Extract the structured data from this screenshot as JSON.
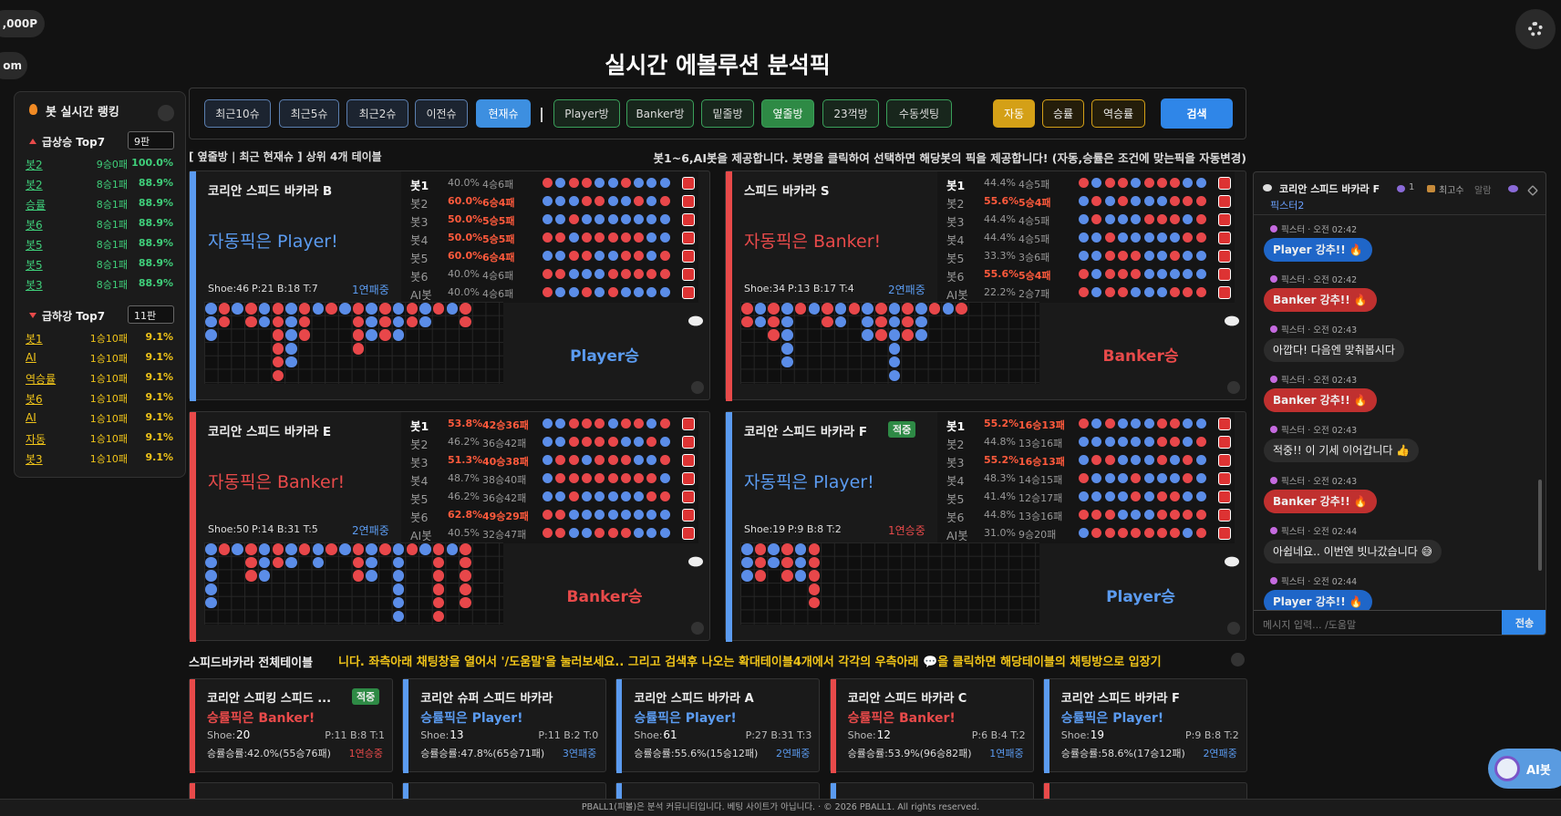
{
  "top_pills": [
    ",000P",
    "om"
  ],
  "title": "실시간 에볼루션 분석픽",
  "filters": [
    "최근10슈",
    "최근5슈",
    "최근2슈",
    "이전슈",
    "현재슈"
  ],
  "rooms": [
    "Player방",
    "Banker방",
    "밑줄방",
    "옆줄방",
    "23꺽방",
    "수동셋팅"
  ],
  "modes": [
    "자동",
    "승률",
    "역승률"
  ],
  "search": "검색",
  "info_left": "[ 옆줄방 | 최근 현재슈 ] 상위 4개 테이블",
  "info_right": "봇1~6,AI봇을 제공합니다. 봇명을 클릭하여 선택하면 해당봇의 픽을 제공합니다! (자동,승률은 조건에 맞는픽을 자동변경)",
  "ranking": {
    "title": "봇 실시간 랭킹",
    "rising": {
      "title": "급상승 Top7",
      "select": "9판",
      "rows": [
        [
          "봇2",
          "9승0패",
          "100.0%"
        ],
        [
          "봇2",
          "8승1패",
          "88.9%"
        ],
        [
          "승률",
          "8승1패",
          "88.9%"
        ],
        [
          "봇6",
          "8승1패",
          "88.9%"
        ],
        [
          "봇5",
          "8승1패",
          "88.9%"
        ],
        [
          "봇5",
          "8승1패",
          "88.9%"
        ],
        [
          "봇3",
          "8승1패",
          "88.9%"
        ]
      ]
    },
    "falling": {
      "title": "급하강 Top7",
      "select": "11판",
      "rows": [
        [
          "봇1",
          "1승10패",
          "9.1%"
        ],
        [
          "AI",
          "1승10패",
          "9.1%"
        ],
        [
          "역승률",
          "1승10패",
          "9.1%"
        ],
        [
          "봇6",
          "1승10패",
          "9.1%"
        ],
        [
          "AI",
          "1승10패",
          "9.1%"
        ],
        [
          "자동",
          "1승10패",
          "9.1%"
        ],
        [
          "봇3",
          "1승10패",
          "9.1%"
        ]
      ]
    }
  },
  "tables": [
    {
      "name": "코리안 스피드 바카라 B",
      "color": "#5b9bf0",
      "pick": "자동픽은 Player!",
      "shoe": "Shoe:46",
      "stats": "P:21 B:18 T:7",
      "streak": "1연패중",
      "streak_color": "#5b9bf0",
      "result": "Player승",
      "bots": [
        [
          "봇1",
          "40.0%",
          "4승6패",
          false
        ],
        [
          "봇2",
          "60.0%",
          "6승4패",
          true
        ],
        [
          "봇3",
          "50.0%",
          "5승5패",
          true
        ],
        [
          "봇4",
          "50.0%",
          "5승5패",
          true
        ],
        [
          "봇5",
          "60.0%",
          "6승4패",
          true
        ],
        [
          "봇6",
          "40.0%",
          "4승6패",
          false
        ],
        [
          "AI봇",
          "40.0%",
          "4승6패",
          false
        ]
      ]
    },
    {
      "name": "스피드 바카라 S",
      "color": "#e84a4a",
      "pick": "자동픽은 Banker!",
      "shoe": "Shoe:34",
      "stats": "P:13 B:17 T:4",
      "streak": "2연패중",
      "streak_color": "#5b9bf0",
      "result": "Banker승",
      "bots": [
        [
          "봇1",
          "44.4%",
          "4승5패",
          false
        ],
        [
          "봇2",
          "55.6%",
          "5승4패",
          true
        ],
        [
          "봇3",
          "44.4%",
          "4승5패",
          false
        ],
        [
          "봇4",
          "44.4%",
          "4승5패",
          false
        ],
        [
          "봇5",
          "33.3%",
          "3승6패",
          false
        ],
        [
          "봇6",
          "55.6%",
          "5승4패",
          true
        ],
        [
          "AI봇",
          "22.2%",
          "2승7패",
          false
        ]
      ]
    },
    {
      "name": "코리안 스피드 바카라 E",
      "color": "#e84a4a",
      "pick": "자동픽은 Banker!",
      "shoe": "Shoe:50",
      "stats": "P:14 B:31 T:5",
      "streak": "2연패중",
      "streak_color": "#5b9bf0",
      "result": "Banker승",
      "bots": [
        [
          "봇1",
          "53.8%",
          "42승36패",
          true
        ],
        [
          "봇2",
          "46.2%",
          "36승42패",
          false
        ],
        [
          "봇3",
          "51.3%",
          "40승38패",
          true
        ],
        [
          "봇4",
          "48.7%",
          "38승40패",
          false
        ],
        [
          "봇5",
          "46.2%",
          "36승42패",
          false
        ],
        [
          "봇6",
          "62.8%",
          "49승29패",
          true
        ],
        [
          "AI봇",
          "40.5%",
          "32승47패",
          false
        ]
      ]
    },
    {
      "name": "코리안 스피드 바카라 F",
      "badge": "적중",
      "color": "#5b9bf0",
      "pick": "자동픽은 Player!",
      "shoe": "Shoe:19",
      "stats": "P:9 B:8 T:2",
      "streak": "1연승중",
      "streak_color": "#e84a4a",
      "result": "Player승",
      "bots": [
        [
          "봇1",
          "55.2%",
          "16승13패",
          true
        ],
        [
          "봇2",
          "44.8%",
          "13승16패",
          false
        ],
        [
          "봇3",
          "55.2%",
          "16승13패",
          true
        ],
        [
          "봇4",
          "48.3%",
          "14승15패",
          false
        ],
        [
          "봇5",
          "41.4%",
          "12승17패",
          false
        ],
        [
          "봇6",
          "44.8%",
          "13승16패",
          false
        ],
        [
          "AI봇",
          "31.0%",
          "9승20패",
          false
        ]
      ]
    }
  ],
  "section_title": "스피드바카라 전체테이블",
  "marquee": "니다. 좌측아래 채팅창을 열어서 '/도움말'을 눌러보세요.. 그리고 검색후 나오는 확대테이블4개에서 각각의 우측아래 💬을 클릭하면 해당테이블의 채팅방으로 입장기",
  "cards": [
    {
      "name": "코리안 스피킹 스피드 ...",
      "badge": "적중",
      "color": "#e84a4a",
      "pick": "승률픽은 Banker!",
      "shoe_label": "Shoe:",
      "shoe": "20",
      "stats": "P:11 B:8 T:1",
      "rate": "승률승률:42.0%(55승76패)",
      "streak": "1연승중",
      "streak_color": "#e84a4a"
    },
    {
      "name": "코리안 슈퍼 스피드 바카라",
      "color": "#5b9bf0",
      "pick": "승률픽은 Player!",
      "shoe_label": "Shoe:",
      "shoe": "13",
      "stats": "P:11 B:2 T:0",
      "rate": "승률승률:47.8%(65승71패)",
      "streak": "3연패중",
      "streak_color": "#5b9bf0"
    },
    {
      "name": "코리안 스피드 바카라 A",
      "color": "#5b9bf0",
      "pick": "승률픽은 Player!",
      "shoe_label": "Shoe:",
      "shoe": "61",
      "stats": "P:27 B:31 T:3",
      "rate": "승률승률:55.6%(15승12패)",
      "streak": "2연패중",
      "streak_color": "#5b9bf0"
    },
    {
      "name": "코리안 스피드 바카라 C",
      "color": "#e84a4a",
      "pick": "승률픽은 Banker!",
      "shoe_label": "Shoe:",
      "shoe": "12",
      "stats": "P:6 B:4 T:2",
      "rate": "승률승률:53.9%(96승82패)",
      "streak": "1연패중",
      "streak_color": "#5b9bf0"
    },
    {
      "name": "코리안 스피드 바카라 F",
      "color": "#5b9bf0",
      "pick": "승률픽은 Player!",
      "shoe_label": "Shoe:",
      "shoe": "19",
      "stats": "P:9 B:8 T:2",
      "rate": "승률승률:58.6%(17승12패)",
      "streak": "2연패중",
      "streak_color": "#5b9bf0"
    }
  ],
  "chat": {
    "room": "코리안 스피드 바카라 F",
    "count": "1",
    "rank": "최고수",
    "alarm": "알람",
    "user": "픽스터2",
    "messages": [
      {
        "meta": "픽스터 · 오전 02:42",
        "text": "Player 강추!! 🔥",
        "kind": "player"
      },
      {
        "meta": "픽스터 · 오전 02:42",
        "text": "Banker 강추!! 🔥",
        "kind": "banker"
      },
      {
        "meta": "픽스터 · 오전 02:43",
        "text": "아깝다! 다음엔 맞춰봅시다",
        "kind": "normal"
      },
      {
        "meta": "픽스터 · 오전 02:43",
        "text": "Banker 강추!! 🔥",
        "kind": "banker"
      },
      {
        "meta": "픽스터 · 오전 02:43",
        "text": "적중!! 이 기세 이어갑니다 👍",
        "kind": "normal"
      },
      {
        "meta": "픽스터 · 오전 02:43",
        "text": "Banker 강추!! 🔥",
        "kind": "banker"
      },
      {
        "meta": "픽스터 · 오전 02:44",
        "text": "아쉽네요.. 이번엔 빗나갔습니다 😅",
        "kind": "normal"
      },
      {
        "meta": "픽스터 · 오전 02:44",
        "text": "Player 강추!! 🔥",
        "kind": "player"
      }
    ],
    "placeholder": "메시지 입력... /도움말",
    "send": "전송"
  },
  "ai_bot": "AI봇",
  "footer": "PBALL1(피볼)은 분석 커뮤니티입니다. 베팅 사이트가 아닙니다. · © 2026 PBALL1. All rights reserved."
}
